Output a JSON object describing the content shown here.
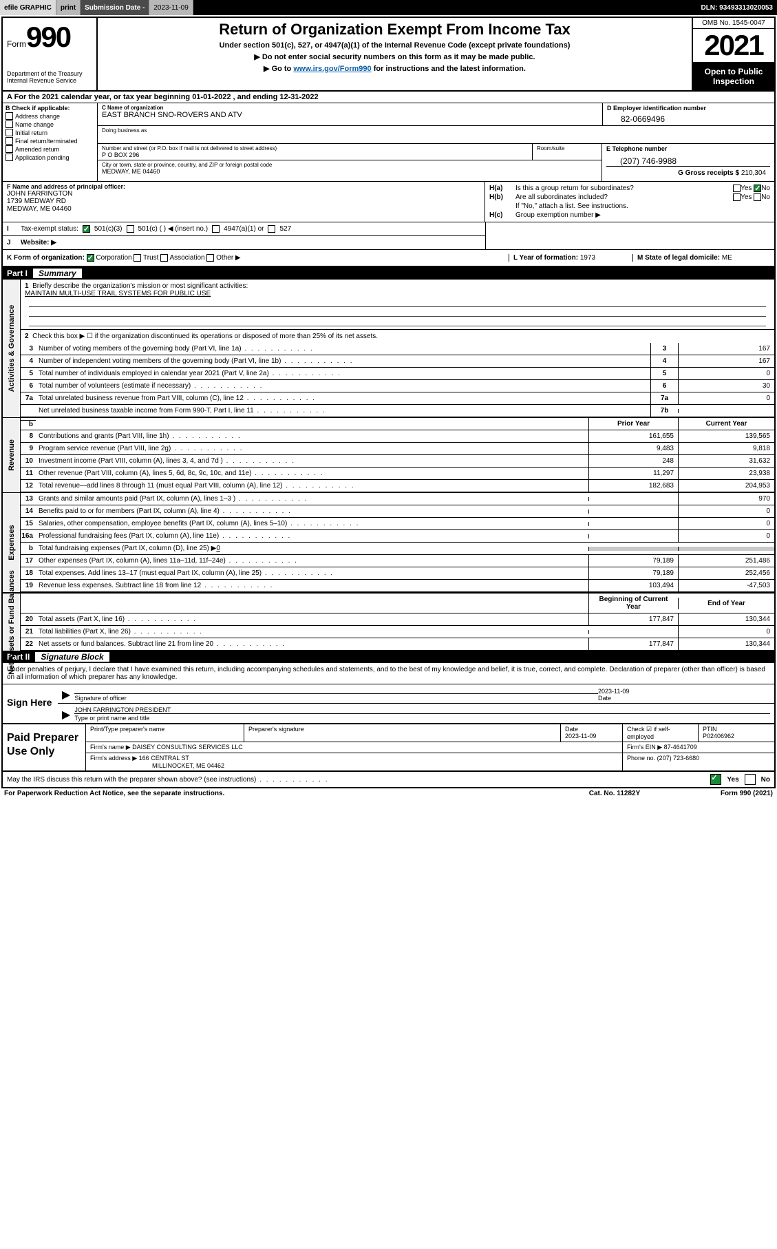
{
  "topbar": {
    "efile": "efile GRAPHIC",
    "print": "print",
    "subdate_label": "Submission Date - ",
    "subdate_value": "2023-11-09",
    "dln": "DLN: 93493313020053"
  },
  "header": {
    "form_word": "Form",
    "form_num": "990",
    "dept": "Department of the Treasury",
    "irs": "Internal Revenue Service",
    "title": "Return of Organization Exempt From Income Tax",
    "sub1": "Under section 501(c), 527, or 4947(a)(1) of the Internal Revenue Code (except private foundations)",
    "sub2": "▶ Do not enter social security numbers on this form as it may be made public.",
    "sub3_pre": "▶ Go to ",
    "sub3_link": "www.irs.gov/Form990",
    "sub3_post": " for instructions and the latest information.",
    "omb": "OMB No. 1545-0047",
    "year": "2021",
    "open": "Open to Public Inspection"
  },
  "row_a": "A For the 2021 calendar year, or tax year beginning 01-01-2022   , and ending 12-31-2022",
  "col_b": {
    "title": "B Check if applicable:",
    "items": [
      "Address change",
      "Name change",
      "Initial return",
      "Final return/terminated",
      "Amended return",
      "Application pending"
    ]
  },
  "c": {
    "name_label": "C Name of organization",
    "name": "EAST BRANCH SNO-ROVERS AND ATV",
    "dba_label": "Doing business as",
    "street_label": "Number and street (or P.O. box if mail is not delivered to street address)",
    "street": "P O BOX 296",
    "room_label": "Room/suite",
    "city_label": "City or town, state or province, country, and ZIP or foreign postal code",
    "city": "MEDWAY, ME  04460"
  },
  "d": {
    "label": "D Employer identification number",
    "value": "82-0669496"
  },
  "e": {
    "label": "E Telephone number",
    "value": "(207) 746-9988"
  },
  "g": {
    "label": "G Gross receipts $",
    "value": "210,304"
  },
  "f": {
    "label": "F Name and address of principal officer:",
    "name": "JOHN FARRINGTON",
    "addr1": "1739 MEDWAY RD",
    "addr2": "MEDWAY, ME  04460"
  },
  "h": {
    "a": "Is this a group return for subordinates?",
    "b": "Are all subordinates included?",
    "note": "If \"No,\" attach a list. See instructions.",
    "c": "Group exemption number ▶"
  },
  "i": {
    "label": "Tax-exempt status:",
    "c3": "501(c)(3)",
    "c": "501(c) (  ) ◀ (insert no.)",
    "a1": "4947(a)(1) or",
    "s527": "527"
  },
  "j": {
    "label": "Website: ▶"
  },
  "k": {
    "label": "K Form of organization:",
    "corp": "Corporation",
    "trust": "Trust",
    "assoc": "Association",
    "other": "Other ▶"
  },
  "l": {
    "label": "L Year of formation:",
    "value": "1973"
  },
  "m": {
    "label": "M State of legal domicile:",
    "value": "ME"
  },
  "part1": {
    "label": "Part I",
    "title": "Summary"
  },
  "part2": {
    "label": "Part II",
    "title": "Signature Block"
  },
  "side_labels": {
    "gov": "Activities & Governance",
    "rev": "Revenue",
    "exp": "Expenses",
    "net": "Net Assets or Fund Balances"
  },
  "mission": {
    "label": "Briefly describe the organization's mission or most significant activities:",
    "text": "MAINTAIN MULTI-USE TRAIL SYSTEMS FOR PUBLIC USE"
  },
  "line2": "Check this box ▶ ☐  if the organization discontinued its operations or disposed of more than 25% of its net assets.",
  "gov_rows": [
    {
      "n": "3",
      "desc": "Number of voting members of the governing body (Part VI, line 1a)",
      "box": "3",
      "val": "167"
    },
    {
      "n": "4",
      "desc": "Number of independent voting members of the governing body (Part VI, line 1b)",
      "box": "4",
      "val": "167"
    },
    {
      "n": "5",
      "desc": "Total number of individuals employed in calendar year 2021 (Part V, line 2a)",
      "box": "5",
      "val": "0"
    },
    {
      "n": "6",
      "desc": "Total number of volunteers (estimate if necessary)",
      "box": "6",
      "val": "30"
    },
    {
      "n": "7a",
      "desc": "Total unrelated business revenue from Part VIII, column (C), line 12",
      "box": "7a",
      "val": "0"
    },
    {
      "n": "",
      "desc": "Net unrelated business taxable income from Form 990-T, Part I, line 11",
      "box": "7b",
      "val": ""
    }
  ],
  "col_headers": {
    "prior": "Prior Year",
    "current": "Current Year",
    "begin": "Beginning of Current Year",
    "end": "End of Year"
  },
  "rev_rows": [
    {
      "n": "8",
      "desc": "Contributions and grants (Part VIII, line 1h)",
      "prior": "161,655",
      "curr": "139,565"
    },
    {
      "n": "9",
      "desc": "Program service revenue (Part VIII, line 2g)",
      "prior": "9,483",
      "curr": "9,818"
    },
    {
      "n": "10",
      "desc": "Investment income (Part VIII, column (A), lines 3, 4, and 7d )",
      "prior": "248",
      "curr": "31,632"
    },
    {
      "n": "11",
      "desc": "Other revenue (Part VIII, column (A), lines 5, 6d, 8c, 9c, 10c, and 11e)",
      "prior": "11,297",
      "curr": "23,938"
    },
    {
      "n": "12",
      "desc": "Total revenue—add lines 8 through 11 (must equal Part VIII, column (A), line 12)",
      "prior": "182,683",
      "curr": "204,953"
    }
  ],
  "exp_rows": [
    {
      "n": "13",
      "desc": "Grants and similar amounts paid (Part IX, column (A), lines 1–3 )",
      "prior": "",
      "curr": "970"
    },
    {
      "n": "14",
      "desc": "Benefits paid to or for members (Part IX, column (A), line 4)",
      "prior": "",
      "curr": "0"
    },
    {
      "n": "15",
      "desc": "Salaries, other compensation, employee benefits (Part IX, column (A), lines 5–10)",
      "prior": "",
      "curr": "0"
    },
    {
      "n": "16a",
      "desc": "Professional fundraising fees (Part IX, column (A), line 11e)",
      "prior": "",
      "curr": "0"
    }
  ],
  "line16b": {
    "n": "b",
    "desc": "Total fundraising expenses (Part IX, column (D), line 25) ▶",
    "val": "0"
  },
  "exp_rows2": [
    {
      "n": "17",
      "desc": "Other expenses (Part IX, column (A), lines 11a–11d, 11f–24e)",
      "prior": "79,189",
      "curr": "251,486"
    },
    {
      "n": "18",
      "desc": "Total expenses. Add lines 13–17 (must equal Part IX, column (A), line 25)",
      "prior": "79,189",
      "curr": "252,456"
    },
    {
      "n": "19",
      "desc": "Revenue less expenses. Subtract line 18 from line 12",
      "prior": "103,494",
      "curr": "-47,503"
    }
  ],
  "net_rows": [
    {
      "n": "20",
      "desc": "Total assets (Part X, line 16)",
      "prior": "177,847",
      "curr": "130,344"
    },
    {
      "n": "21",
      "desc": "Total liabilities (Part X, line 26)",
      "prior": "",
      "curr": "0"
    },
    {
      "n": "22",
      "desc": "Net assets or fund balances. Subtract line 21 from line 20",
      "prior": "177,847",
      "curr": "130,344"
    }
  ],
  "sig": {
    "intro": "Under penalties of perjury, I declare that I have examined this return, including accompanying schedules and statements, and to the best of my knowledge and belief, it is true, correct, and complete. Declaration of preparer (other than officer) is based on all information of which preparer has any knowledge.",
    "sign_here": "Sign Here",
    "sig_officer": "Signature of officer",
    "date_label": "Date",
    "date_val": "2023-11-09",
    "name": "JOHN FARRINGTON PRESIDENT",
    "name_label": "Type or print name and title"
  },
  "prep": {
    "title": "Paid Preparer Use Only",
    "h_name": "Print/Type preparer's name",
    "h_sig": "Preparer's signature",
    "h_date": "Date",
    "date_val": "2023-11-09",
    "h_check": "Check ☑ if self-employed",
    "h_ptin": "PTIN",
    "ptin": "P02406962",
    "firm_name_lbl": "Firm's name    ▶",
    "firm_name": "DAISEY CONSULTING SERVICES LLC",
    "firm_ein_lbl": "Firm's EIN ▶",
    "firm_ein": "87-4641709",
    "firm_addr_lbl": "Firm's address ▶",
    "firm_addr1": "166 CENTRAL ST",
    "firm_addr2": "MILLINOCKET, ME  04462",
    "phone_lbl": "Phone no.",
    "phone": "(207) 723-6680"
  },
  "footer": {
    "discuss": "May the IRS discuss this return with the preparer shown above? (see instructions)",
    "paperwork": "For Paperwork Reduction Act Notice, see the separate instructions.",
    "catno": "Cat. No. 11282Y",
    "form": "Form 990 (2021)"
  },
  "colors": {
    "link": "#0b5ea8",
    "check_green": "#1a8a3a",
    "shade": "#c8c8c8"
  }
}
